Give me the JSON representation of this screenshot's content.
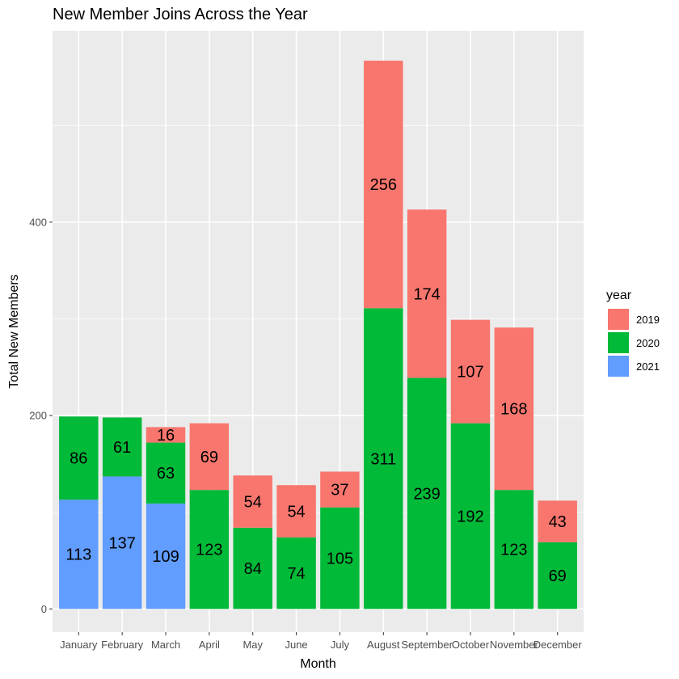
{
  "chart_data": {
    "type": "bar",
    "stacked": true,
    "title": "New Member Joins Across the Year",
    "xlabel": "Month",
    "ylabel": "Total New Members",
    "ylim": [
      -24,
      598
    ],
    "yticks": [
      0,
      200,
      400
    ],
    "grid": true,
    "legend": {
      "title": "year",
      "position": "right"
    },
    "categories": [
      "January",
      "February",
      "March",
      "April",
      "May",
      "June",
      "July",
      "August",
      "September",
      "October",
      "November",
      "December"
    ],
    "stack_order": [
      "2021",
      "2020",
      "2019"
    ],
    "series": [
      {
        "name": "2019",
        "color": "#F8766D",
        "values": [
          null,
          null,
          16,
          69,
          54,
          54,
          37,
          256,
          174,
          107,
          168,
          43
        ]
      },
      {
        "name": "2020",
        "color": "#00BA38",
        "values": [
          86,
          61,
          63,
          123,
          84,
          74,
          105,
          311,
          239,
          192,
          123,
          69
        ]
      },
      {
        "name": "2021",
        "color": "#619CFF",
        "values": [
          113,
          137,
          109,
          null,
          null,
          null,
          null,
          null,
          null,
          null,
          null,
          null
        ]
      }
    ]
  }
}
